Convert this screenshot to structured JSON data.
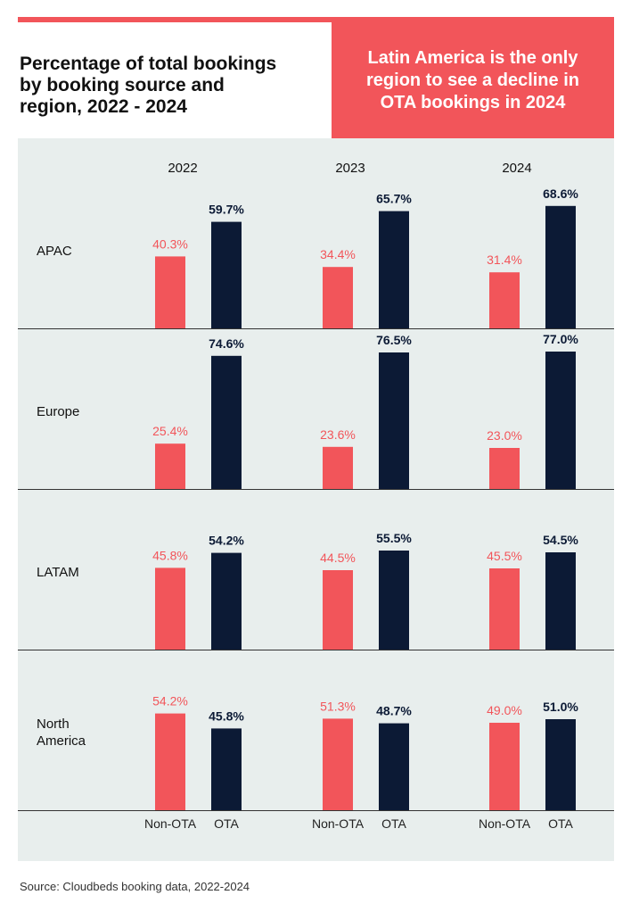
{
  "title": "Percentage of total bookings\nby booking source and\nregion, 2022 - 2024",
  "callout": "Latin America is the only\nregion to see a decline in\nOTA bookings in 2024",
  "source": "Source: Cloudbeds booking data, 2022-2024",
  "colors": {
    "accent": "#f2555a",
    "non_ota": "#f2555a",
    "ota": "#0c1a35",
    "panel": "#e8eeed",
    "axis_line": "#333333"
  },
  "chart_data": {
    "type": "bar",
    "years": [
      "2022",
      "2023",
      "2024"
    ],
    "series_labels": [
      "Non-OTA",
      "OTA"
    ],
    "value_suffix": "%",
    "ylim": [
      0,
      100
    ],
    "regions": [
      {
        "name": "APAC",
        "non_ota": [
          40.3,
          34.4,
          31.4
        ],
        "ota": [
          59.7,
          65.7,
          68.6
        ]
      },
      {
        "name": "Europe",
        "non_ota": [
          25.4,
          23.6,
          23.0
        ],
        "ota": [
          74.6,
          76.5,
          77.0
        ]
      },
      {
        "name": "LATAM",
        "non_ota": [
          45.8,
          44.5,
          45.5
        ],
        "ota": [
          54.2,
          55.5,
          54.5
        ]
      },
      {
        "name": "North\nAmerica",
        "non_ota": [
          54.2,
          51.3,
          49.0
        ],
        "ota": [
          45.8,
          48.7,
          51.0
        ]
      }
    ]
  }
}
